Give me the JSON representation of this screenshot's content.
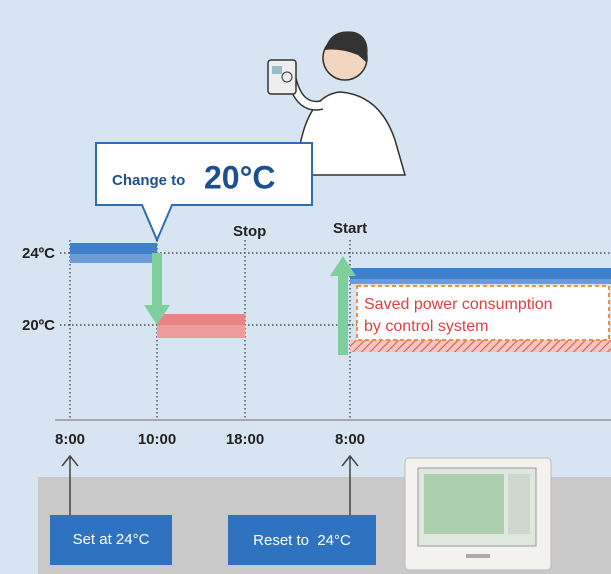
{
  "callout": {
    "prefix": "Change to",
    "temperature": "20°C"
  },
  "events": {
    "stop": "Stop",
    "start": "Start"
  },
  "levels": {
    "high": "24ºC",
    "low": "20ºC"
  },
  "times": [
    "8:00",
    "10:00",
    "18:00",
    "8:00"
  ],
  "savings": {
    "line1": "Saved power consumption",
    "line2": "by control system"
  },
  "actions": {
    "set": "Set at 24°C",
    "reset": "Reset to  24°C"
  }
}
